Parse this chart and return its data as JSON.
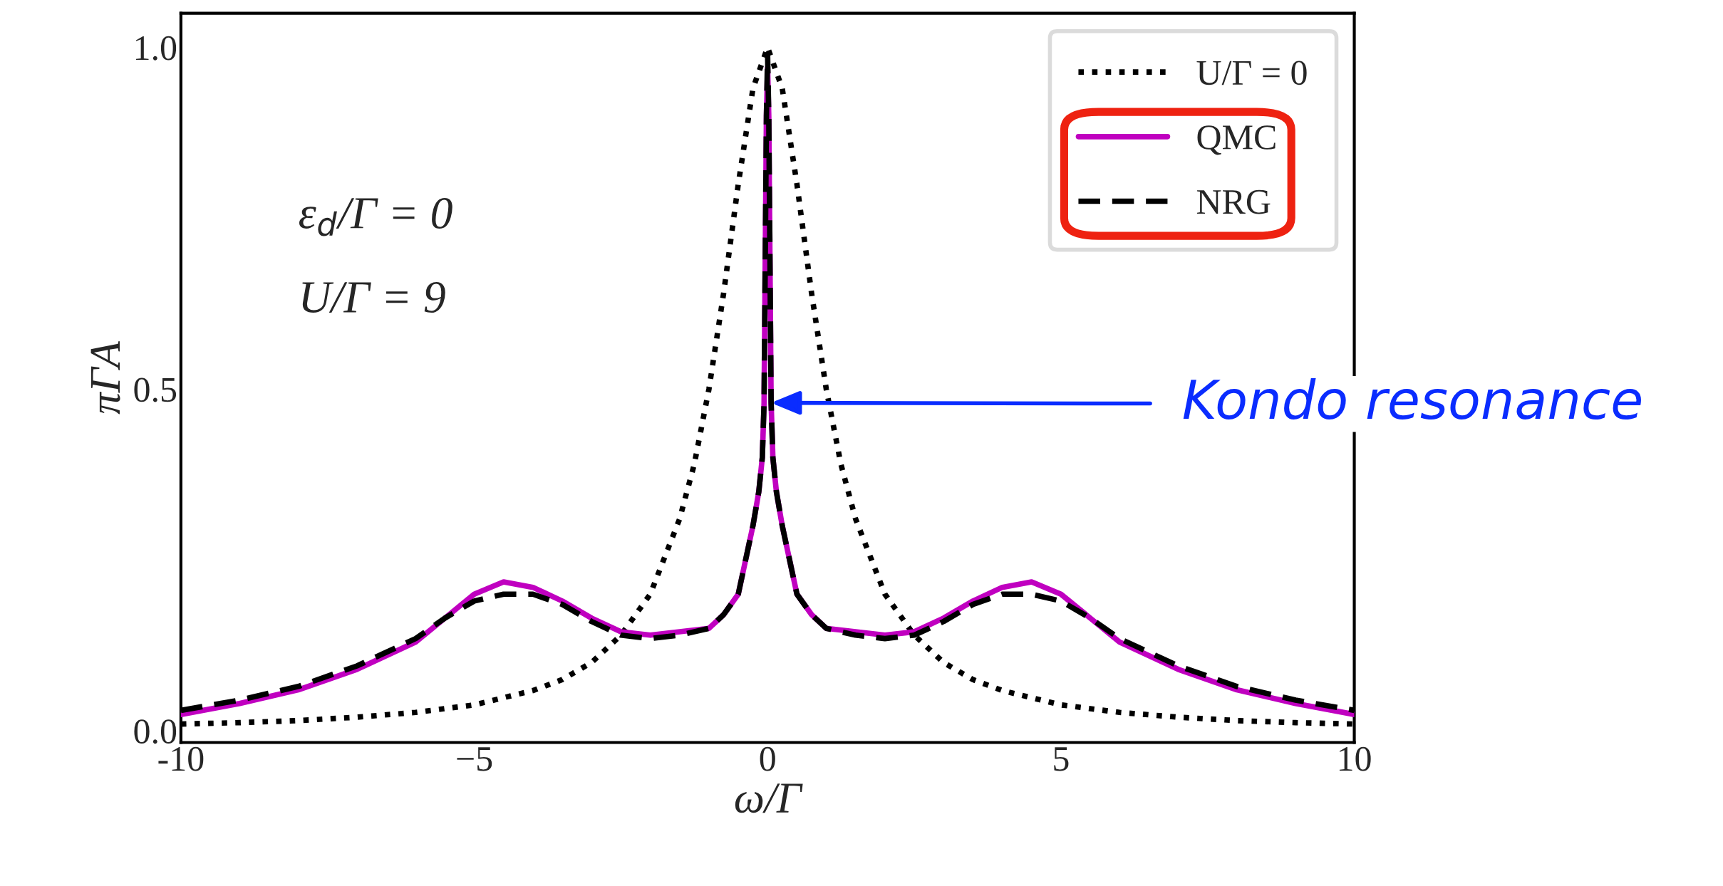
{
  "chart_data": {
    "type": "line",
    "xlabel": "ω/Γ",
    "ylabel": "πΓA",
    "xlim": [
      -10,
      10
    ],
    "ylim": [
      -0.017,
      1.05
    ],
    "xticks": [
      {
        "value": -10,
        "label": "-10"
      },
      {
        "value": -5,
        "label": "−5"
      },
      0,
      5,
      10
    ],
    "yticks": [
      {
        "value": 0,
        "label": "0.0"
      },
      {
        "value": 0.5,
        "label": "0.5"
      },
      {
        "value": 1,
        "label": "1.0"
      }
    ],
    "grid": false,
    "legend": "top right",
    "series": [
      {
        "name": "U/Γ = 0",
        "color": "#000000",
        "line_style": "dotted",
        "x": [
          -10,
          -9,
          -8,
          -7,
          -6,
          -5,
          -4,
          -3.5,
          -3,
          -2.5,
          -2,
          -1.5,
          -1.25,
          -1,
          -0.75,
          -0.5,
          -0.25,
          0,
          0.25,
          0.5,
          0.75,
          1,
          1.25,
          1.5,
          2,
          2.5,
          3,
          3.5,
          4,
          5,
          6,
          7,
          8,
          9,
          10
        ],
        "values": [
          0.01,
          0.012,
          0.015,
          0.02,
          0.027,
          0.038,
          0.059,
          0.075,
          0.1,
          0.14,
          0.2,
          0.31,
          0.39,
          0.5,
          0.64,
          0.8,
          0.94,
          1.0,
          0.94,
          0.8,
          0.64,
          0.5,
          0.39,
          0.31,
          0.2,
          0.14,
          0.1,
          0.075,
          0.059,
          0.038,
          0.027,
          0.02,
          0.015,
          0.012,
          0.01
        ]
      },
      {
        "name": "QMC",
        "color": "#c000c0",
        "line_style": "solid",
        "x": [
          -10,
          -9,
          -8,
          -7,
          -6,
          -5.5,
          -5,
          -4.5,
          -4,
          -3.5,
          -3,
          -2.5,
          -2,
          -1.5,
          -1,
          -0.75,
          -0.5,
          -0.25,
          -0.15,
          -0.09,
          -0.06,
          -0.02,
          0,
          0.02,
          0.06,
          0.09,
          0.15,
          0.25,
          0.5,
          0.75,
          1,
          1.5,
          2,
          2.5,
          3,
          3.5,
          4,
          4.5,
          5,
          5.5,
          6,
          7,
          8,
          9,
          10
        ],
        "values": [
          0.024,
          0.04,
          0.06,
          0.09,
          0.13,
          0.165,
          0.2,
          0.218,
          0.21,
          0.19,
          0.165,
          0.145,
          0.14,
          0.145,
          0.15,
          0.17,
          0.2,
          0.3,
          0.35,
          0.4,
          0.48,
          0.9,
          0.97,
          0.9,
          0.48,
          0.4,
          0.35,
          0.3,
          0.2,
          0.17,
          0.15,
          0.145,
          0.14,
          0.145,
          0.165,
          0.19,
          0.21,
          0.218,
          0.2,
          0.165,
          0.13,
          0.09,
          0.06,
          0.04,
          0.024
        ]
      },
      {
        "name": "NRG",
        "color": "#000000",
        "line_style": "dashed",
        "x": [
          -10,
          -9,
          -8,
          -7,
          -6,
          -5.5,
          -5,
          -4.5,
          -4,
          -3.5,
          -3,
          -2.5,
          -2,
          -1.5,
          -1,
          -0.75,
          -0.5,
          -0.25,
          -0.15,
          -0.09,
          -0.06,
          -0.02,
          0,
          0.02,
          0.06,
          0.09,
          0.15,
          0.25,
          0.5,
          0.75,
          1,
          1.5,
          2,
          2.5,
          3,
          3.5,
          4,
          4.5,
          5,
          5.5,
          6,
          7,
          8,
          9,
          10
        ],
        "values": [
          0.03,
          0.045,
          0.065,
          0.095,
          0.135,
          0.165,
          0.19,
          0.2,
          0.2,
          0.185,
          0.16,
          0.14,
          0.135,
          0.14,
          0.15,
          0.17,
          0.2,
          0.3,
          0.35,
          0.4,
          0.48,
          0.9,
          0.99,
          0.9,
          0.48,
          0.4,
          0.35,
          0.3,
          0.2,
          0.17,
          0.15,
          0.14,
          0.135,
          0.14,
          0.16,
          0.185,
          0.2,
          0.2,
          0.19,
          0.165,
          0.135,
          0.095,
          0.065,
          0.045,
          0.03
        ]
      }
    ],
    "annotations": [
      "ε$_{d}$/Γ = 0",
      "U/Γ = 9",
      {
        "text": "Kondo resonance",
        "x": 0.06,
        "y": 0.48
      }
    ]
  }
}
